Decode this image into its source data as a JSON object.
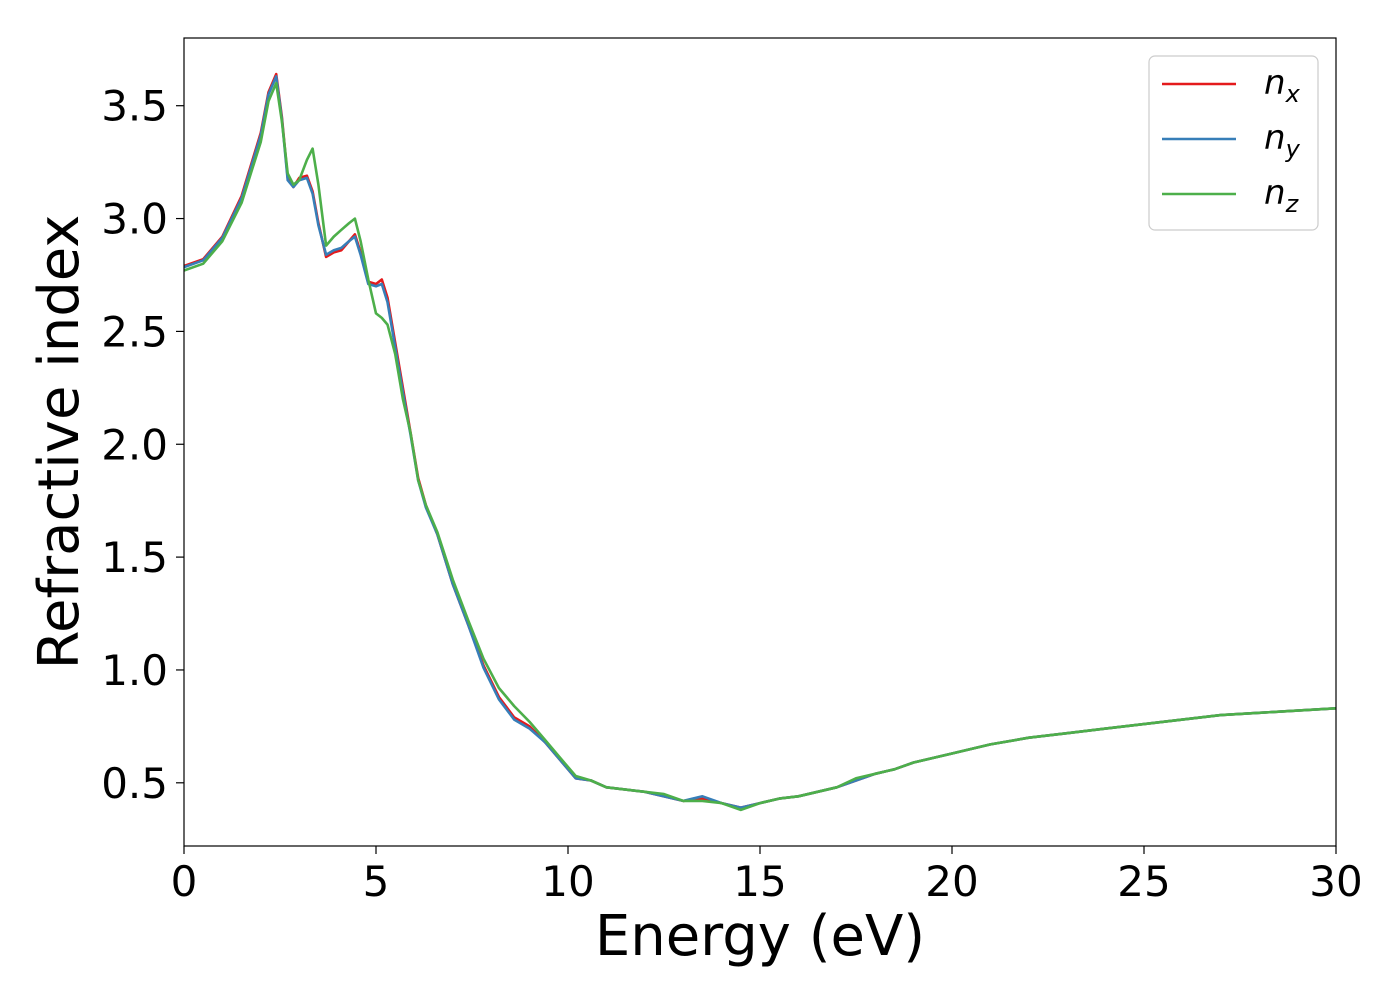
{
  "chart_data": {
    "type": "line",
    "title": "",
    "xlabel": "Energy (eV)",
    "ylabel": "Refractive index",
    "xlim": [
      0,
      30
    ],
    "ylim": [
      0.22,
      3.8
    ],
    "xticks": [
      0,
      5,
      10,
      15,
      20,
      25,
      30
    ],
    "xtick_labels": [
      "0",
      "5",
      "10",
      "15",
      "20",
      "25",
      "30"
    ],
    "yticks": [
      0.5,
      1.0,
      1.5,
      2.0,
      2.5,
      3.0,
      3.5
    ],
    "ytick_labels": [
      "0.5",
      "1.0",
      "1.5",
      "2.0",
      "2.5",
      "3.0",
      "3.5"
    ],
    "grid": false,
    "legend_position": "top-right",
    "series": [
      {
        "name": "n",
        "subscript": "x",
        "color": "#e41a1c",
        "x": [
          0,
          0.5,
          1.0,
          1.5,
          2.0,
          2.2,
          2.4,
          2.55,
          2.7,
          2.85,
          3.0,
          3.2,
          3.35,
          3.5,
          3.7,
          3.9,
          4.1,
          4.3,
          4.45,
          4.6,
          4.8,
          5.0,
          5.15,
          5.3,
          5.5,
          5.7,
          5.9,
          6.1,
          6.3,
          6.6,
          7.0,
          7.4,
          7.8,
          8.2,
          8.6,
          9.0,
          9.4,
          9.8,
          10.2,
          10.6,
          11.0,
          11.5,
          12.0,
          12.5,
          13.0,
          13.5,
          14.0,
          14.5,
          15.0,
          15.5,
          16.0,
          16.5,
          17.0,
          17.5,
          18.0,
          18.5,
          19.0,
          20.0,
          21.0,
          22.0,
          23.0,
          24.0,
          25.0,
          26.0,
          27.0,
          28.0,
          29.0,
          30.0
        ],
        "values": [
          2.79,
          2.82,
          2.92,
          3.1,
          3.38,
          3.56,
          3.64,
          3.45,
          3.18,
          3.14,
          3.18,
          3.19,
          3.12,
          2.98,
          2.83,
          2.85,
          2.86,
          2.9,
          2.93,
          2.85,
          2.72,
          2.71,
          2.73,
          2.65,
          2.45,
          2.25,
          2.05,
          1.85,
          1.73,
          1.6,
          1.38,
          1.2,
          1.02,
          0.88,
          0.79,
          0.75,
          0.68,
          0.6,
          0.52,
          0.51,
          0.48,
          0.47,
          0.46,
          0.44,
          0.42,
          0.43,
          0.41,
          0.39,
          0.41,
          0.43,
          0.44,
          0.46,
          0.48,
          0.51,
          0.54,
          0.56,
          0.59,
          0.63,
          0.67,
          0.7,
          0.72,
          0.74,
          0.76,
          0.78,
          0.8,
          0.81,
          0.82,
          0.83
        ]
      },
      {
        "name": "n",
        "subscript": "y",
        "color": "#377eb8",
        "x": [
          0,
          0.5,
          1.0,
          1.5,
          2.0,
          2.2,
          2.4,
          2.55,
          2.7,
          2.85,
          3.0,
          3.2,
          3.35,
          3.5,
          3.7,
          3.9,
          4.1,
          4.3,
          4.45,
          4.6,
          4.8,
          5.0,
          5.15,
          5.3,
          5.5,
          5.7,
          5.9,
          6.1,
          6.3,
          6.6,
          7.0,
          7.4,
          7.8,
          8.2,
          8.6,
          9.0,
          9.4,
          9.8,
          10.2,
          10.6,
          11.0,
          11.5,
          12.0,
          12.5,
          13.0,
          13.5,
          14.0,
          14.5,
          15.0,
          15.5,
          16.0,
          16.5,
          17.0,
          17.5,
          18.0,
          18.5,
          19.0,
          20.0,
          21.0,
          22.0,
          23.0,
          24.0,
          25.0,
          26.0,
          27.0,
          28.0,
          29.0,
          30.0
        ],
        "values": [
          2.785,
          2.815,
          2.915,
          3.09,
          3.37,
          3.55,
          3.63,
          3.44,
          3.17,
          3.14,
          3.17,
          3.18,
          3.11,
          2.97,
          2.84,
          2.86,
          2.87,
          2.9,
          2.92,
          2.84,
          2.71,
          2.7,
          2.71,
          2.63,
          2.43,
          2.23,
          2.04,
          1.84,
          1.72,
          1.6,
          1.38,
          1.2,
          1.01,
          0.87,
          0.78,
          0.74,
          0.68,
          0.6,
          0.52,
          0.51,
          0.48,
          0.47,
          0.46,
          0.44,
          0.42,
          0.44,
          0.41,
          0.39,
          0.41,
          0.43,
          0.44,
          0.46,
          0.48,
          0.51,
          0.54,
          0.56,
          0.59,
          0.63,
          0.67,
          0.7,
          0.72,
          0.74,
          0.76,
          0.78,
          0.8,
          0.81,
          0.82,
          0.83
        ]
      },
      {
        "name": "n",
        "subscript": "z",
        "color": "#4daf4a",
        "x": [
          0,
          0.5,
          1.0,
          1.5,
          2.0,
          2.2,
          2.4,
          2.55,
          2.7,
          2.85,
          3.0,
          3.2,
          3.35,
          3.5,
          3.7,
          3.9,
          4.1,
          4.3,
          4.45,
          4.6,
          4.8,
          5.0,
          5.15,
          5.3,
          5.5,
          5.7,
          5.9,
          6.1,
          6.3,
          6.6,
          7.0,
          7.4,
          7.8,
          8.2,
          8.6,
          9.0,
          9.4,
          9.8,
          10.2,
          10.6,
          11.0,
          11.5,
          12.0,
          12.5,
          13.0,
          13.5,
          14.0,
          14.5,
          15.0,
          15.5,
          16.0,
          16.5,
          17.0,
          17.5,
          18.0,
          18.5,
          19.0,
          20.0,
          21.0,
          22.0,
          23.0,
          24.0,
          25.0,
          26.0,
          27.0,
          28.0,
          29.0,
          30.0
        ],
        "values": [
          2.77,
          2.8,
          2.9,
          3.07,
          3.34,
          3.52,
          3.6,
          3.43,
          3.2,
          3.15,
          3.17,
          3.26,
          3.31,
          3.15,
          2.88,
          2.92,
          2.95,
          2.98,
          3.0,
          2.9,
          2.73,
          2.58,
          2.56,
          2.53,
          2.4,
          2.2,
          2.05,
          1.84,
          1.73,
          1.61,
          1.4,
          1.22,
          1.05,
          0.92,
          0.84,
          0.77,
          0.69,
          0.61,
          0.53,
          0.51,
          0.48,
          0.47,
          0.46,
          0.45,
          0.42,
          0.42,
          0.41,
          0.38,
          0.41,
          0.43,
          0.44,
          0.46,
          0.48,
          0.52,
          0.54,
          0.56,
          0.59,
          0.63,
          0.67,
          0.7,
          0.72,
          0.74,
          0.76,
          0.78,
          0.8,
          0.81,
          0.82,
          0.83
        ]
      }
    ]
  }
}
